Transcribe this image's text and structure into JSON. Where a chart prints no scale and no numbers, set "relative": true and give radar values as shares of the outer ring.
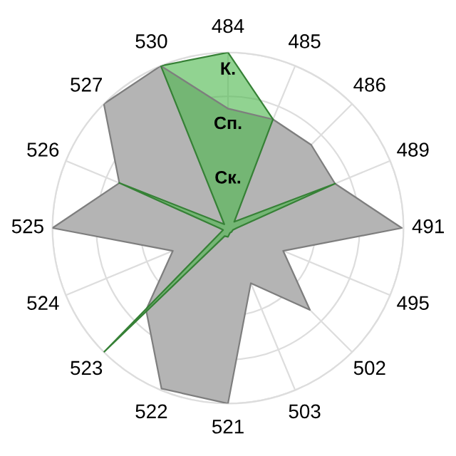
{
  "chart_data": {
    "type": "radar",
    "relative": true,
    "grid": true,
    "legend": false,
    "marker": "none",
    "categories": [
      "484",
      "485",
      "486",
      "489",
      "491",
      "495",
      "502",
      "503",
      "521",
      "522",
      "523",
      "524",
      "525",
      "526",
      "527",
      "530"
    ],
    "series": [
      {
        "color": "#b4b4b4",
        "values": [
          0.68,
          0.67,
          0.67,
          0.66,
          0.99,
          0.34,
          0.66,
          0.34,
          1.0,
          0.99,
          0.66,
          0.34,
          1.0,
          0.67,
          1.0,
          1.0
        ]
      },
      {
        "color": "#4db84d",
        "values": [
          1.0,
          0.67,
          0.05,
          0.66,
          0.05,
          0.03,
          0.03,
          0.03,
          0.05,
          0.05,
          1.0,
          0.03,
          0.05,
          0.67,
          0.03,
          1.0
        ]
      }
    ],
    "annotations": [
      "К.",
      "Сп.",
      "Ск."
    ]
  }
}
